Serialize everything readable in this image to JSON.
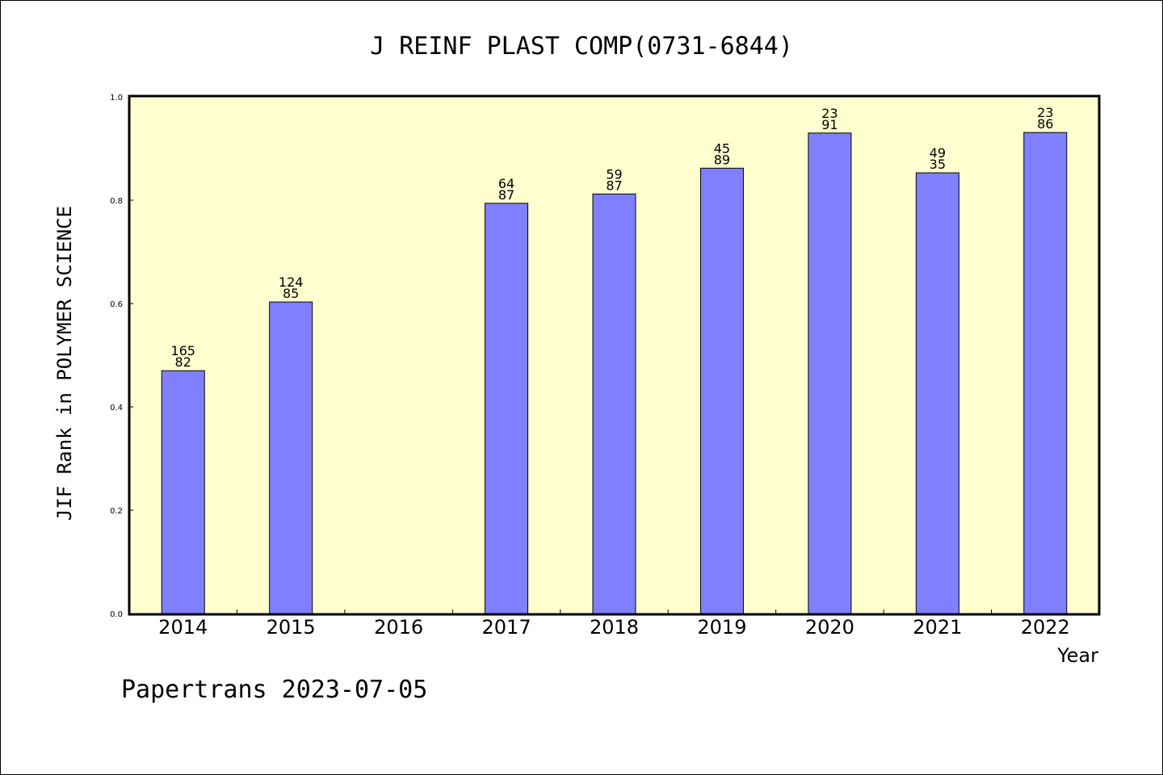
{
  "chart_data": {
    "type": "bar",
    "title": "J REINF PLAST COMP(0731-6844)",
    "xlabel": "Year",
    "ylabel": "JIF Rank in POLYMER SCIENCE",
    "ylim": [
      0,
      1.0
    ],
    "yticks": [
      "0.0",
      "0.2",
      "0.4",
      "0.6",
      "0.8",
      "1.0"
    ],
    "categories": [
      "2014",
      "2015",
      "2016",
      "2017",
      "2018",
      "2019",
      "2020",
      "2021",
      "2022"
    ],
    "values": [
      0.47,
      0.603,
      null,
      0.794,
      0.812,
      0.862,
      0.93,
      0.853,
      0.931
    ],
    "label_top": [
      "165",
      "124",
      "",
      "64",
      "59",
      "45",
      "23",
      "49",
      "23"
    ],
    "label_bottom": [
      "82",
      "85",
      "",
      "87",
      "87",
      "89",
      "91",
      "35",
      "86"
    ],
    "bar_color": "#8080ff",
    "background_color": "#ffffd0",
    "grid": false
  },
  "footer": "Papertrans 2023-07-05"
}
